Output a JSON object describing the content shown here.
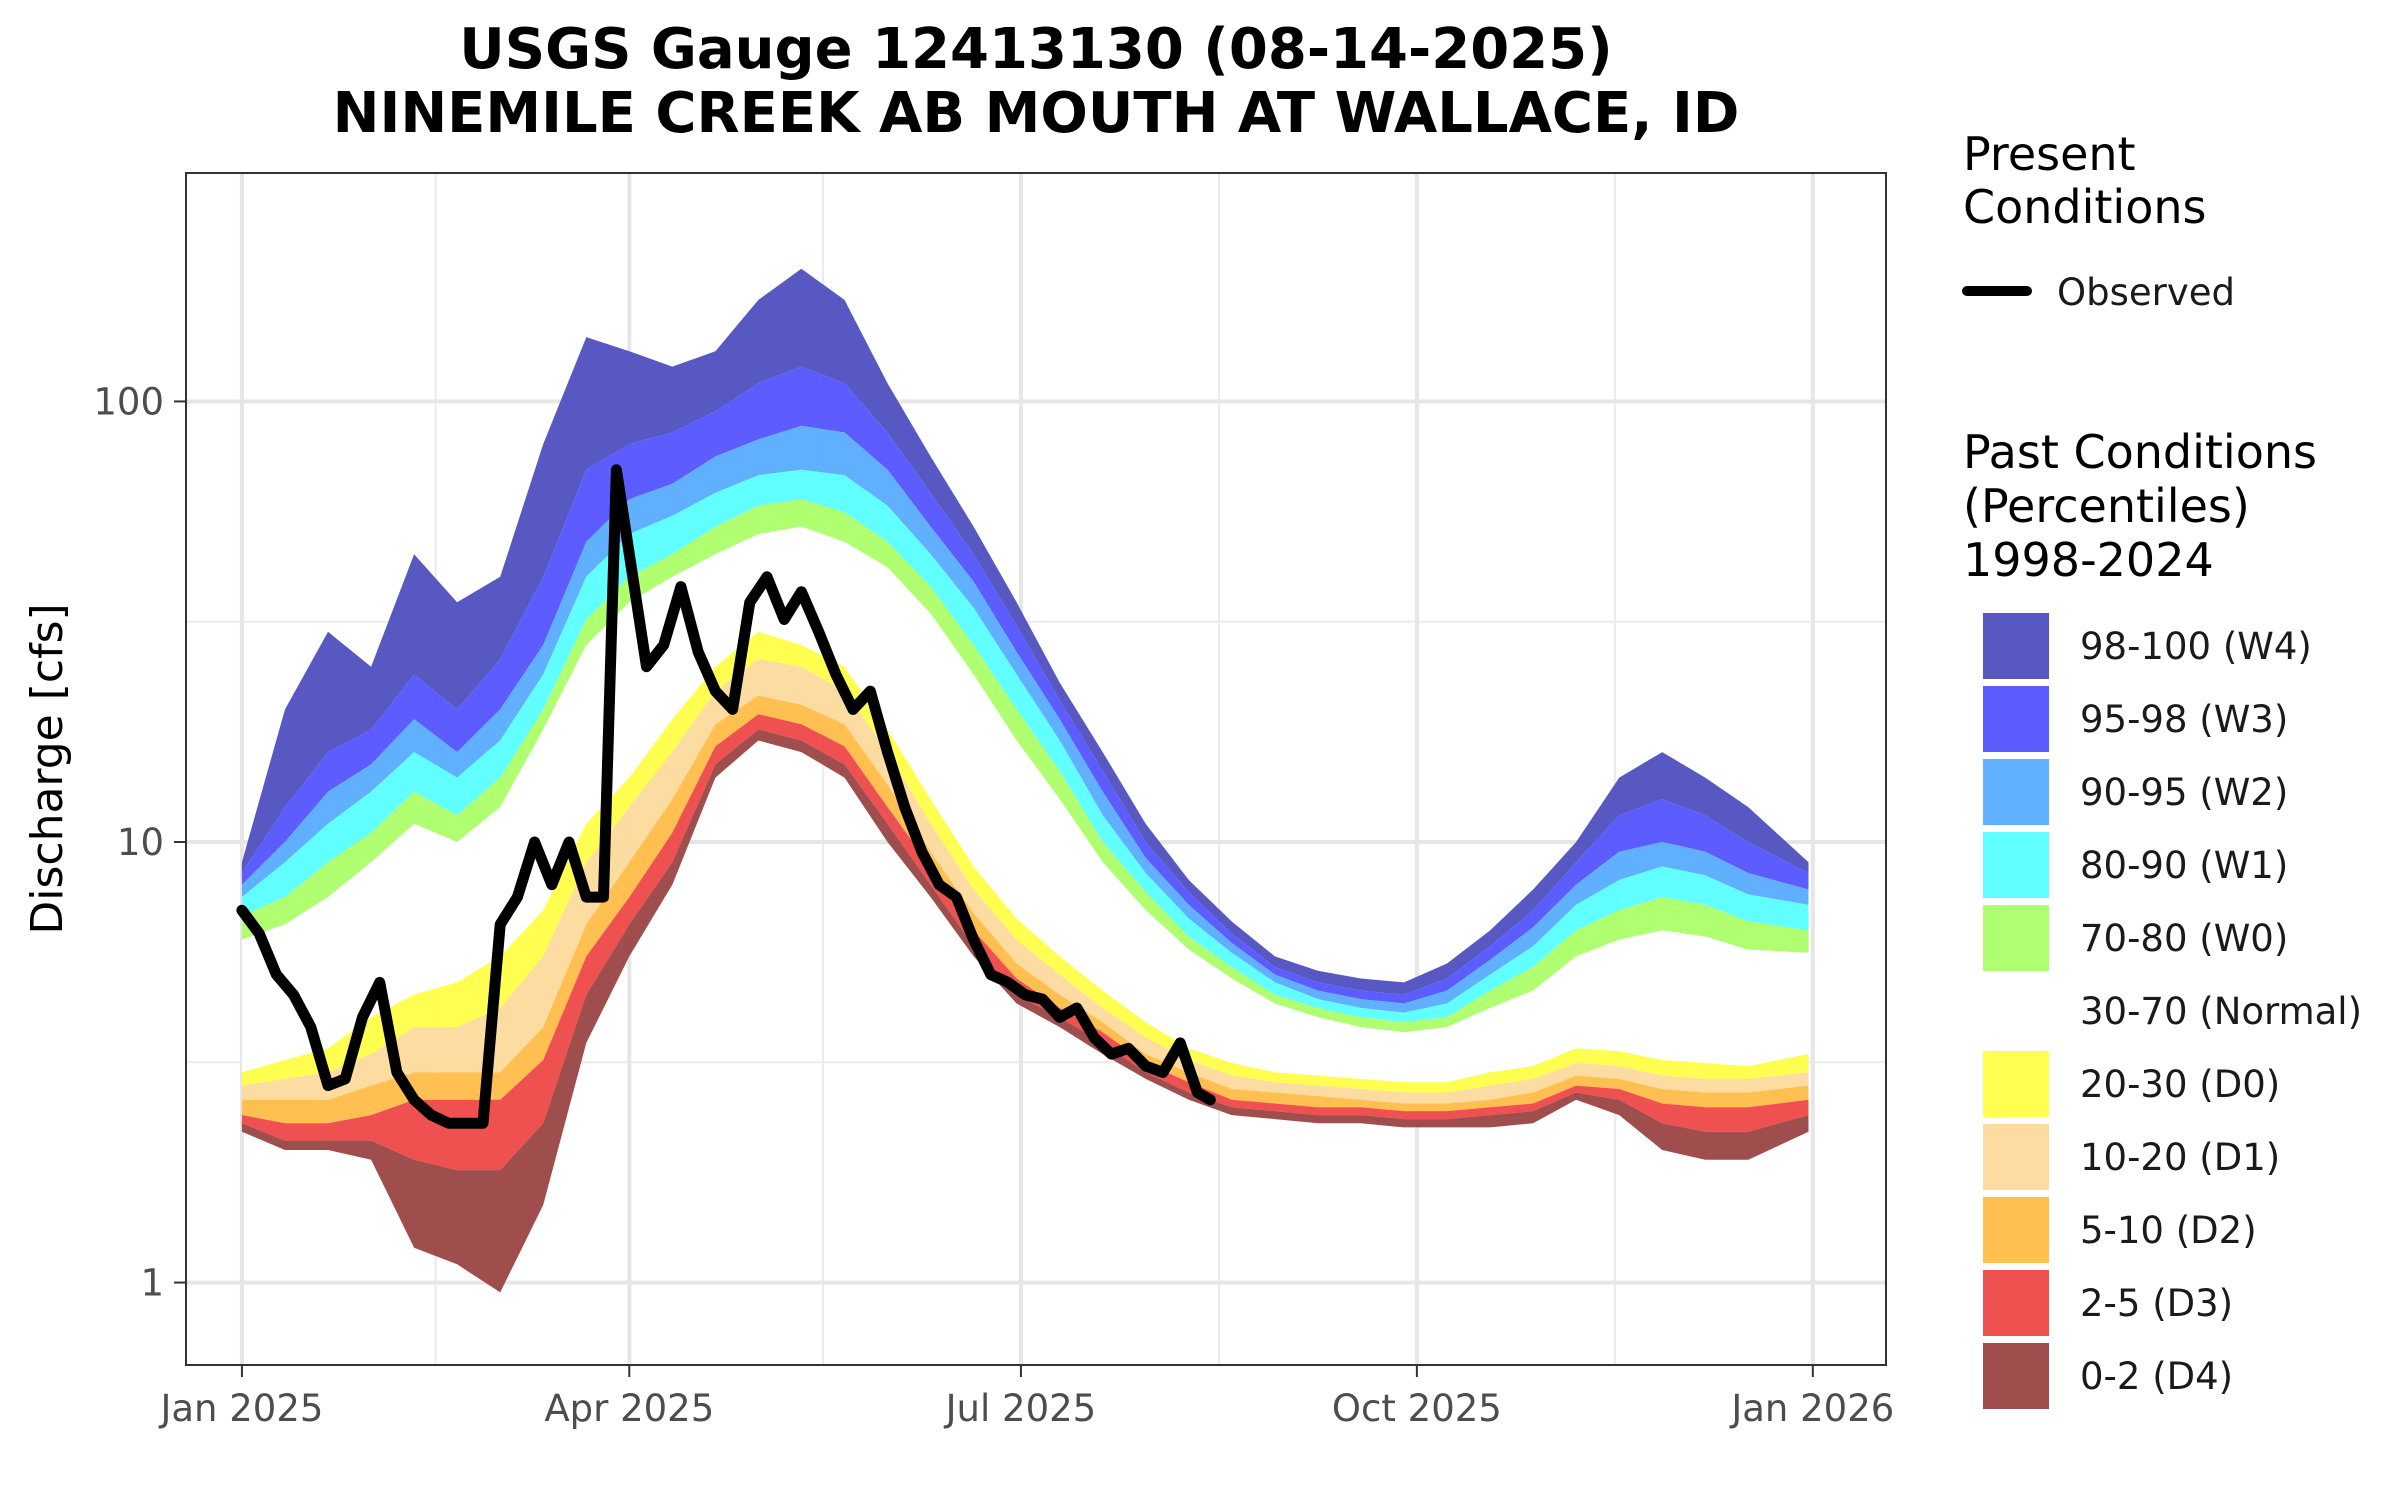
{
  "chart_data": {
    "type": "area",
    "title_line1": "USGS Gauge 12413130 (08-14-2025)",
    "title_line2": "NINEMILE CREEK AB MOUTH AT WALLACE, ID",
    "ylabel": "Discharge [cfs]",
    "xlabel": "",
    "y_scale": "log",
    "ylim": [
      0.65,
      330
    ],
    "y_ticks": [
      {
        "value": 1,
        "label": "1"
      },
      {
        "value": 10,
        "label": "10"
      },
      {
        "value": 100,
        "label": "100"
      }
    ],
    "x_ticks": [
      {
        "date": "2025-01-01",
        "label": "Jan 2025"
      },
      {
        "date": "2025-04-01",
        "label": "Apr 2025"
      },
      {
        "date": "2025-07-01",
        "label": "Jul 2025"
      },
      {
        "date": "2025-10-01",
        "label": "Oct 2025"
      },
      {
        "date": "2026-01-01",
        "label": "Jan 2026"
      }
    ],
    "x_minor_ticks": [
      "2025-02-15",
      "2025-05-16",
      "2025-08-16",
      "2025-11-16"
    ],
    "xlim": [
      "2024-12-19",
      "2026-01-18"
    ],
    "grid": true,
    "legend_position": "right",
    "legend": {
      "present_title_line1": "Present",
      "present_title_line2": "Conditions",
      "observed_label": "Observed",
      "past_title_line1": "Past Conditions",
      "past_title_line2": "(Percentiles)",
      "past_title_line3": "1998-2024"
    },
    "bands": [
      {
        "label": "98-100 (W4)",
        "color": "#4B4BBE"
      },
      {
        "label": "95-98 (W3)",
        "color": "#5050FF"
      },
      {
        "label": "90-95 (W2)",
        "color": "#55AAFF"
      },
      {
        "label": "80-90 (W1)",
        "color": "#55FFFF"
      },
      {
        "label": "70-80 (W0)",
        "color": "#AAFF66"
      },
      {
        "label": "30-70 (Normal)",
        "color": "#FFFFFF"
      },
      {
        "label": "20-30 (D0)",
        "color": "#FFFF44"
      },
      {
        "label": "10-20 (D1)",
        "color": "#FCD99A"
      },
      {
        "label": "5-10 (D2)",
        "color": "#FFBB44"
      },
      {
        "label": "2-5 (D3)",
        "color": "#EE4444"
      },
      {
        "label": "0-2 (D4)",
        "color": "#994040"
      }
    ],
    "percentile_series": {
      "dates": [
        "2025-01-01",
        "2025-01-11",
        "2025-01-21",
        "2025-01-31",
        "2025-02-10",
        "2025-02-20",
        "2025-03-02",
        "2025-03-12",
        "2025-03-22",
        "2025-04-01",
        "2025-04-11",
        "2025-04-21",
        "2025-05-01",
        "2025-05-11",
        "2025-05-21",
        "2025-05-31",
        "2025-06-10",
        "2025-06-20",
        "2025-06-30",
        "2025-07-10",
        "2025-07-20",
        "2025-07-30",
        "2025-08-09",
        "2025-08-19",
        "2025-08-29",
        "2025-09-08",
        "2025-09-18",
        "2025-09-28",
        "2025-10-08",
        "2025-10-18",
        "2025-10-28",
        "2025-11-07",
        "2025-11-17",
        "2025-11-27",
        "2025-12-07",
        "2025-12-17",
        "2025-12-31"
      ],
      "p0": [
        2.2,
        2.0,
        2.0,
        1.9,
        1.2,
        1.1,
        0.95,
        1.5,
        3.5,
        5.5,
        8.0,
        14.0,
        17.0,
        16.0,
        14.0,
        10.0,
        7.5,
        5.5,
        4.3,
        3.8,
        3.3,
        2.9,
        2.6,
        2.4,
        2.35,
        2.3,
        2.3,
        2.25,
        2.25,
        2.25,
        2.3,
        2.6,
        2.4,
        2.0,
        1.9,
        1.9,
        2.2
      ],
      "p2": [
        2.3,
        2.1,
        2.1,
        2.1,
        1.9,
        1.8,
        1.8,
        2.3,
        4.5,
        6.5,
        9.0,
        15.0,
        18.0,
        17.0,
        15.0,
        11.0,
        8.0,
        5.8,
        4.5,
        4.0,
        3.5,
        3.0,
        2.7,
        2.5,
        2.45,
        2.4,
        2.4,
        2.35,
        2.35,
        2.4,
        2.45,
        2.7,
        2.6,
        2.3,
        2.2,
        2.2,
        2.4
      ],
      "p5": [
        2.4,
        2.3,
        2.3,
        2.4,
        2.6,
        2.6,
        2.6,
        3.2,
        5.5,
        7.5,
        10.5,
        16.5,
        19.5,
        18.5,
        16.5,
        12.0,
        8.8,
        6.3,
        4.9,
        4.2,
        3.7,
        3.15,
        2.85,
        2.6,
        2.55,
        2.5,
        2.5,
        2.45,
        2.45,
        2.5,
        2.55,
        2.8,
        2.75,
        2.55,
        2.5,
        2.5,
        2.6
      ],
      "p10": [
        2.6,
        2.6,
        2.6,
        2.8,
        3.0,
        3.0,
        3.0,
        3.8,
        6.5,
        9.0,
        12.5,
        18.5,
        21.5,
        20.5,
        18.5,
        13.5,
        9.5,
        6.9,
        5.3,
        4.5,
        3.9,
        3.3,
        3.0,
        2.75,
        2.7,
        2.65,
        2.6,
        2.55,
        2.55,
        2.6,
        2.7,
        2.95,
        2.9,
        2.75,
        2.7,
        2.7,
        2.8
      ],
      "p20": [
        2.8,
        2.9,
        3.0,
        3.3,
        3.8,
        3.8,
        4.2,
        5.5,
        9.0,
        12.0,
        16.0,
        22.0,
        26.0,
        25.0,
        22.0,
        16.0,
        11.0,
        7.8,
        6.0,
        5.0,
        4.2,
        3.6,
        3.2,
        2.95,
        2.85,
        2.8,
        2.75,
        2.7,
        2.7,
        2.8,
        2.9,
        3.15,
        3.1,
        2.95,
        2.9,
        2.9,
        3.0
      ],
      "p30": [
        3.0,
        3.2,
        3.4,
        4.0,
        4.5,
        4.8,
        5.5,
        7.0,
        11.0,
        14.0,
        19.0,
        25.0,
        30.0,
        28.0,
        25.0,
        18.0,
        12.5,
        8.8,
        6.7,
        5.5,
        4.6,
        3.9,
        3.4,
        3.15,
        3.0,
        2.95,
        2.9,
        2.85,
        2.85,
        3.0,
        3.1,
        3.4,
        3.35,
        3.2,
        3.15,
        3.1,
        3.3
      ],
      "p70": [
        6.0,
        6.5,
        7.5,
        9.0,
        11.0,
        10.0,
        12.0,
        18.0,
        28.0,
        35.0,
        40.0,
        45.0,
        50.0,
        52.0,
        48.0,
        42.0,
        33.0,
        24.0,
        17.0,
        12.5,
        9.0,
        7.0,
        5.7,
        4.9,
        4.3,
        4.0,
        3.8,
        3.7,
        3.8,
        4.2,
        4.6,
        5.5,
        6.0,
        6.3,
        6.1,
        5.7,
        5.6
      ],
      "p80": [
        6.8,
        7.5,
        9.0,
        10.5,
        13.0,
        11.5,
        14.0,
        20.0,
        32.0,
        40.0,
        45.0,
        52.0,
        58.0,
        60.0,
        56.0,
        48.0,
        38.0,
        28.0,
        20.0,
        14.5,
        10.0,
        7.7,
        6.1,
        5.2,
        4.5,
        4.2,
        4.0,
        3.9,
        4.0,
        4.6,
        5.2,
        6.3,
        7.0,
        7.5,
        7.2,
        6.6,
        6.3
      ],
      "p90": [
        7.5,
        9.0,
        11.0,
        13.0,
        16.0,
        14.0,
        17.0,
        24.0,
        40.0,
        50.0,
        55.0,
        62.0,
        68.0,
        70.0,
        68.0,
        58.0,
        45.0,
        34.0,
        24.0,
        17.0,
        11.5,
        8.5,
        6.7,
        5.6,
        4.8,
        4.4,
        4.2,
        4.1,
        4.3,
        5.0,
        5.8,
        7.2,
        8.2,
        8.8,
        8.4,
        7.6,
        7.2
      ],
      "p95": [
        8.0,
        10.0,
        13.0,
        15.0,
        19.0,
        16.0,
        20.0,
        28.0,
        48.0,
        60.0,
        65.0,
        75.0,
        82.0,
        88.0,
        85.0,
        70.0,
        52.0,
        39.0,
        27.0,
        19.0,
        13.0,
        9.2,
        7.2,
        5.9,
        5.0,
        4.6,
        4.4,
        4.3,
        4.6,
        5.4,
        6.4,
        8.0,
        9.5,
        10.0,
        9.5,
        8.5,
        7.8
      ],
      "p98": [
        8.5,
        12.0,
        16.0,
        18.0,
        24.0,
        20.0,
        26.0,
        40.0,
        70.0,
        80.0,
        85.0,
        95.0,
        110.0,
        120.0,
        110.0,
        85.0,
        62.0,
        45.0,
        31.0,
        21.0,
        14.5,
        10.0,
        7.7,
        6.2,
        5.2,
        4.8,
        4.6,
        4.5,
        4.9,
        5.8,
        7.0,
        9.0,
        11.5,
        12.5,
        11.5,
        10.0,
        8.5
      ],
      "p100": [
        9.0,
        20.0,
        30.0,
        25.0,
        45.0,
        35.0,
        40.0,
        80.0,
        140.0,
        130.0,
        120.0,
        130.0,
        170.0,
        200.0,
        170.0,
        110.0,
        75.0,
        52.0,
        35.0,
        23.0,
        16.0,
        11.0,
        8.2,
        6.6,
        5.5,
        5.1,
        4.9,
        4.8,
        5.3,
        6.3,
        7.8,
        10.0,
        14.0,
        16.0,
        14.0,
        12.0,
        9.0
      ]
    },
    "observed": {
      "name": "Observed",
      "color": "#000000",
      "x": [
        "2025-01-01",
        "2025-01-05",
        "2025-01-09",
        "2025-01-13",
        "2025-01-17",
        "2025-01-21",
        "2025-01-25",
        "2025-01-29",
        "2025-02-02",
        "2025-02-06",
        "2025-02-10",
        "2025-02-14",
        "2025-02-18",
        "2025-02-22",
        "2025-02-26",
        "2025-03-02",
        "2025-03-06",
        "2025-03-10",
        "2025-03-14",
        "2025-03-18",
        "2025-03-22",
        "2025-03-26",
        "2025-03-29",
        "2025-04-01",
        "2025-04-05",
        "2025-04-09",
        "2025-04-13",
        "2025-04-17",
        "2025-04-21",
        "2025-04-25",
        "2025-04-29",
        "2025-05-03",
        "2025-05-07",
        "2025-05-11",
        "2025-05-15",
        "2025-05-19",
        "2025-05-23",
        "2025-05-27",
        "2025-05-31",
        "2025-06-04",
        "2025-06-08",
        "2025-06-12",
        "2025-06-16",
        "2025-06-20",
        "2025-06-24",
        "2025-06-28",
        "2025-07-02",
        "2025-07-06",
        "2025-07-10",
        "2025-07-14",
        "2025-07-18",
        "2025-07-22",
        "2025-07-26",
        "2025-07-30",
        "2025-08-03",
        "2025-08-07",
        "2025-08-11",
        "2025-08-14"
      ],
      "y": [
        7.0,
        6.2,
        5.0,
        4.5,
        3.8,
        2.8,
        2.9,
        4.0,
        4.8,
        3.0,
        2.6,
        2.4,
        2.3,
        2.3,
        2.3,
        6.5,
        7.5,
        10.0,
        8.0,
        10.0,
        7.5,
        7.5,
        70.0,
        45.0,
        25.0,
        28.0,
        38.0,
        27.0,
        22.0,
        20.0,
        35.0,
        40.0,
        32.0,
        37.0,
        30.0,
        24.0,
        20.0,
        22.0,
        16.0,
        12.0,
        9.5,
        8.0,
        7.5,
        6.0,
        5.0,
        4.8,
        4.5,
        4.4,
        4.0,
        4.2,
        3.6,
        3.3,
        3.4,
        3.1,
        3.0,
        3.5,
        2.7,
        2.6
      ]
    }
  }
}
